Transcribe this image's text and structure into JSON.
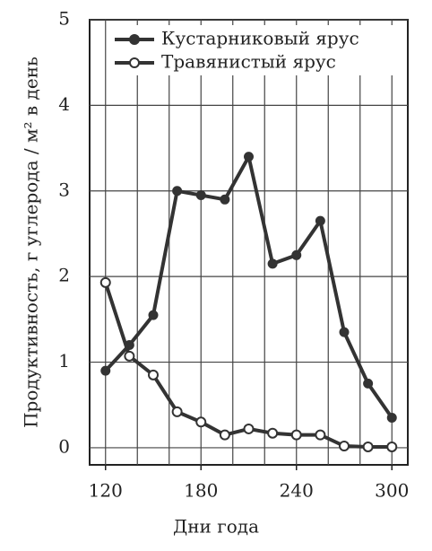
{
  "chart_data": {
    "type": "line",
    "x_label": "Дни года",
    "y_label": "Продуктивность, г углерода / м² в день",
    "x": [
      120,
      135,
      150,
      165,
      180,
      195,
      210,
      225,
      240,
      255,
      270,
      285,
      300
    ],
    "series": [
      {
        "name": "Кустарниковый ярус",
        "color": "#333333",
        "marker": "filled",
        "values": [
          0.9,
          1.2,
          1.55,
          3.0,
          2.95,
          2.9,
          3.4,
          2.15,
          2.25,
          2.65,
          1.35,
          0.75,
          0.35
        ]
      },
      {
        "name": "Травянистый ярус",
        "color": "#333333",
        "marker": "open",
        "values": [
          1.93,
          1.07,
          0.85,
          0.42,
          0.3,
          0.15,
          0.22,
          0.17,
          0.15,
          0.15,
          0.02,
          0.01,
          0.01
        ]
      }
    ],
    "xlim": [
      110,
      310
    ],
    "ylim": [
      -0.2,
      5
    ],
    "xticks": [
      120,
      180,
      240,
      300
    ],
    "x_grid": [
      120,
      140,
      160,
      180,
      200,
      220,
      240,
      260,
      280,
      300
    ],
    "yticks": [
      0,
      1,
      2,
      3,
      4,
      5
    ],
    "grid": true,
    "legend": "top-right"
  }
}
